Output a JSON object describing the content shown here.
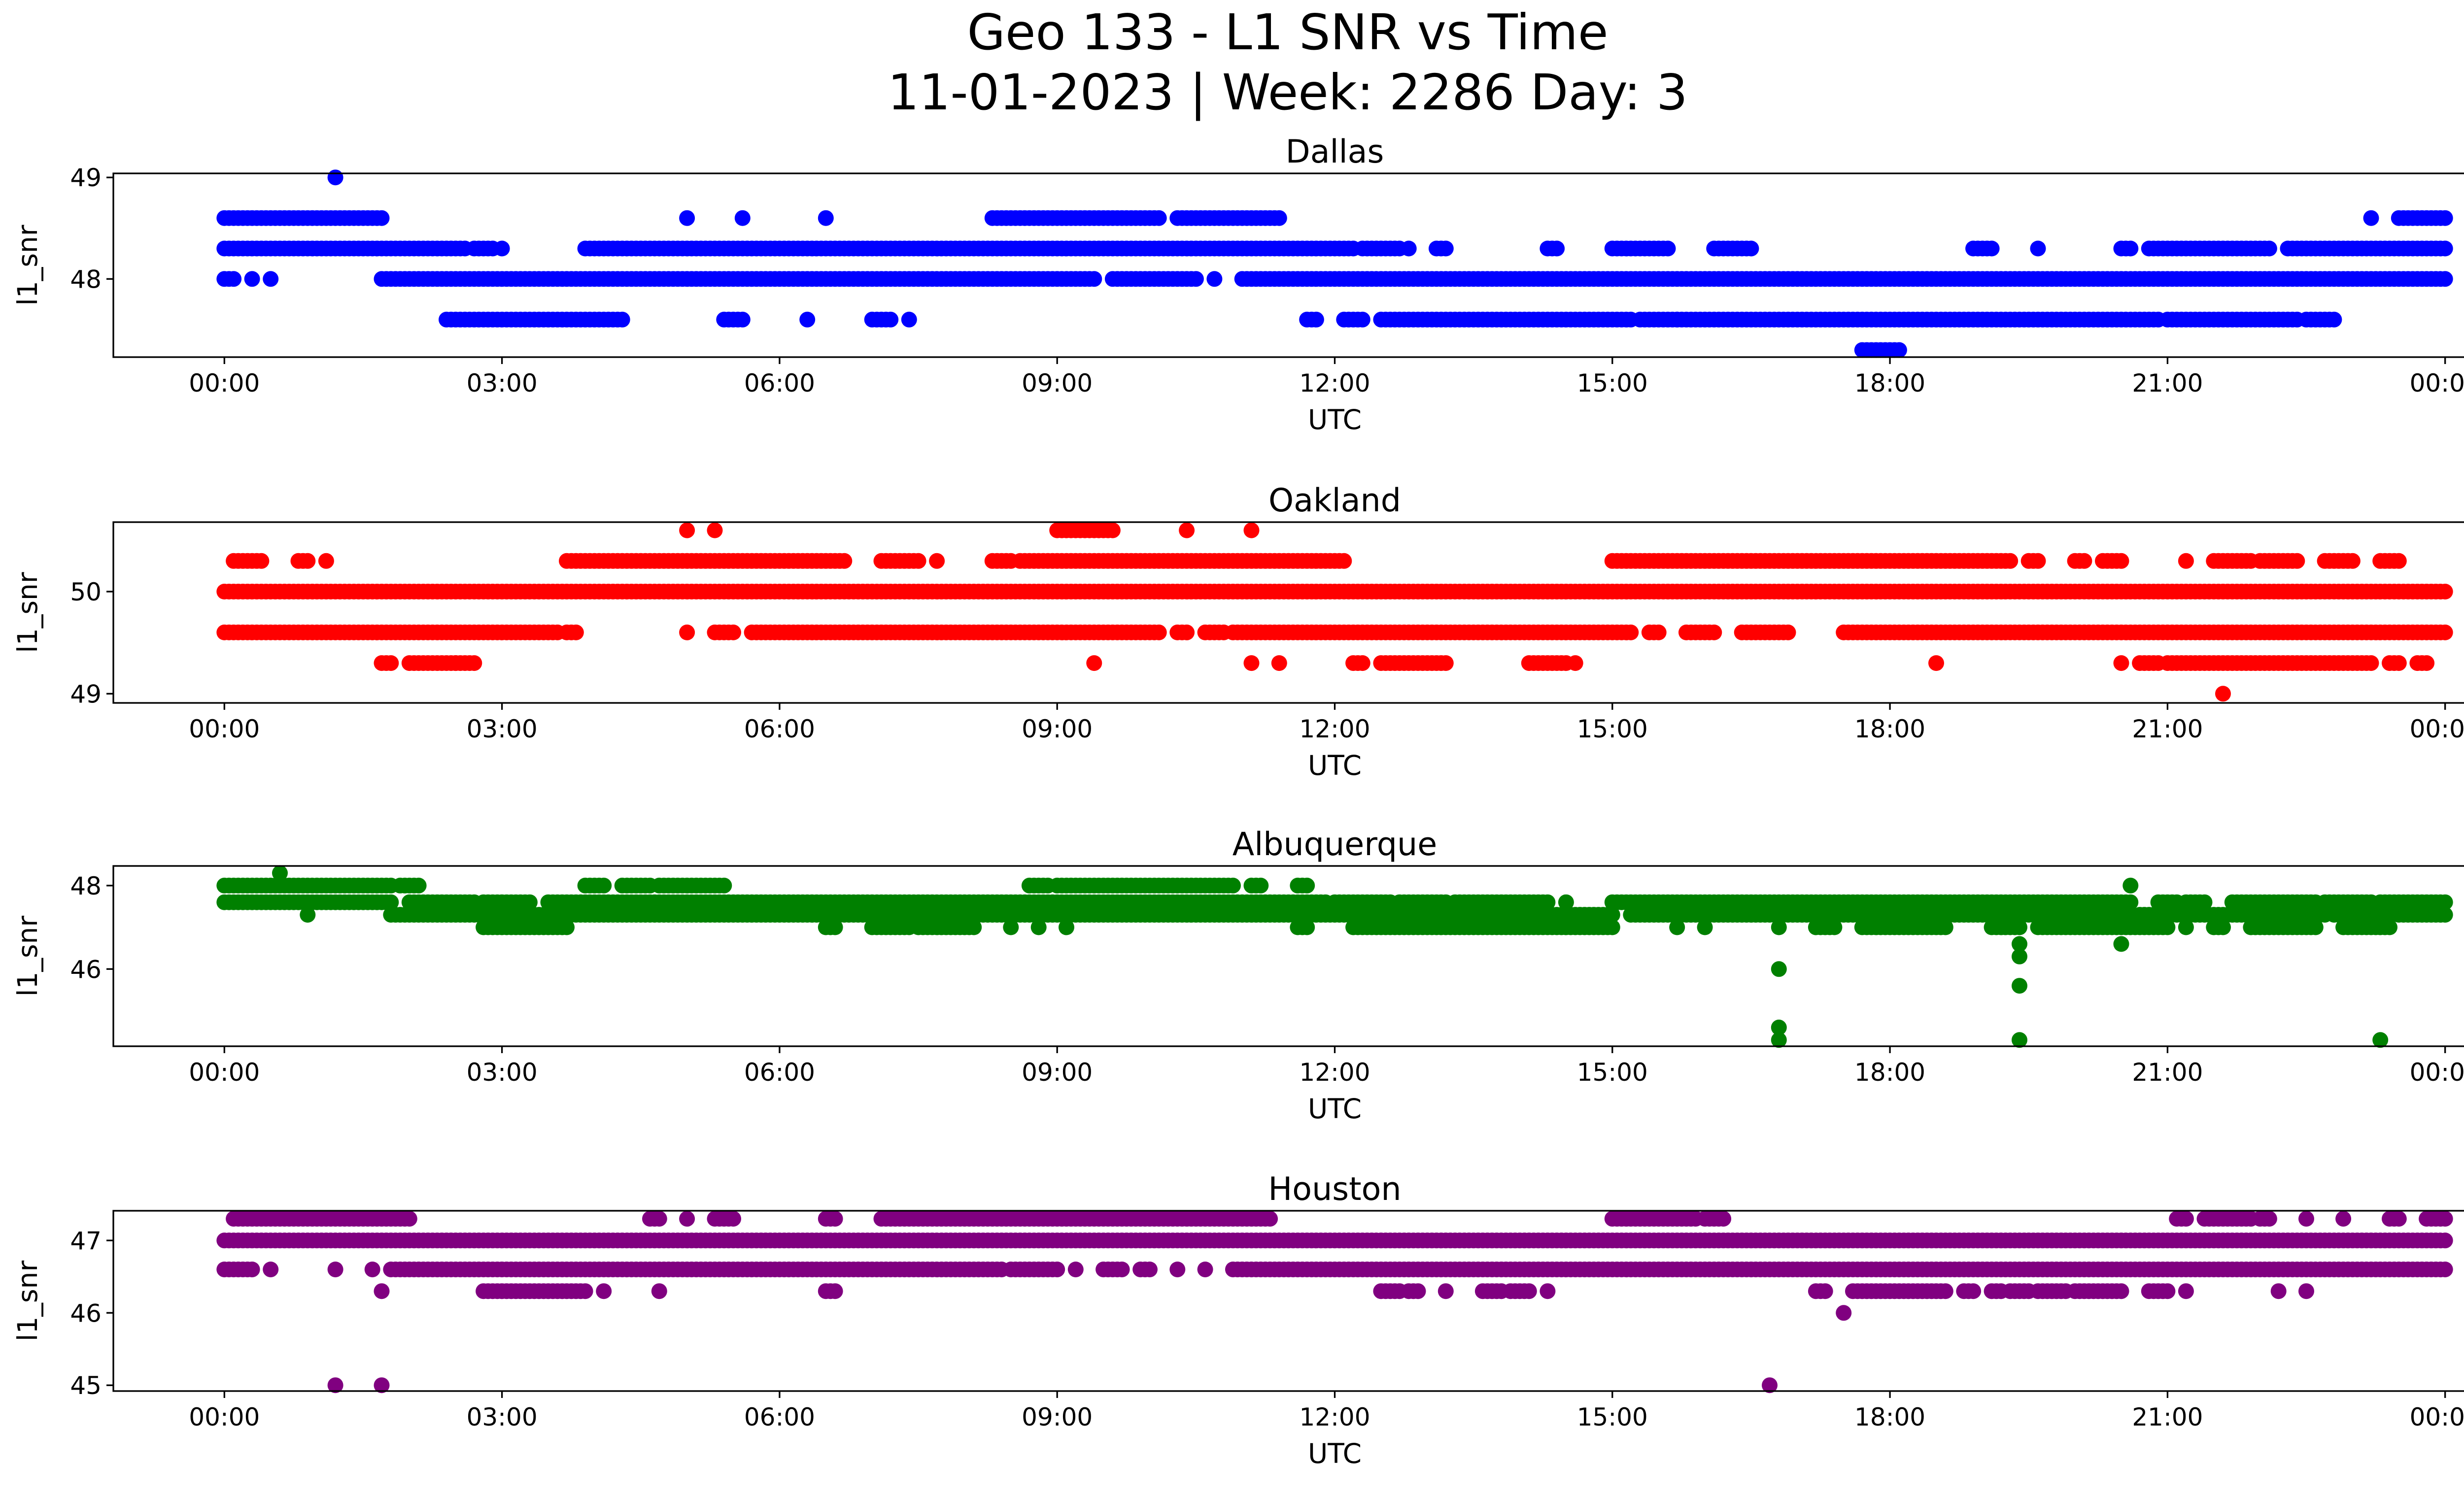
{
  "figure": {
    "title_line1": "Geo 133 - L1 SNR vs Time",
    "title_line2": "11-01-2023 | Week: 2286 Day: 3"
  },
  "chart_data": [
    {
      "type": "scatter",
      "title": "Dallas",
      "xlabel": "UTC",
      "ylabel": "l1_snr",
      "color": "#0000ff",
      "xlim_hours": [
        -1.2,
        25.2
      ],
      "ylim": [
        47.23,
        49.04
      ],
      "x_tick_hours": [
        0,
        3,
        6,
        9,
        12,
        15,
        18,
        21,
        24
      ],
      "x_tick_labels": [
        "00:00",
        "03:00",
        "06:00",
        "09:00",
        "12:00",
        "15:00",
        "18:00",
        "21:00",
        "00:00"
      ],
      "yticks": [
        48,
        49
      ],
      "y_tick_labels": [
        "48",
        "49"
      ],
      "bands": [
        {
          "y": 48.3,
          "segments": [
            [
              0,
              2.6
            ],
            [
              2.7,
              2.9
            ],
            [
              3.0,
              3.0
            ],
            [
              3.9,
              12.2
            ],
            [
              12.3,
              12.7
            ],
            [
              12.8,
              12.8
            ],
            [
              13.1,
              13.2
            ],
            [
              14.3,
              14.4
            ],
            [
              15.0,
              15.6
            ],
            [
              16.1,
              16.5
            ],
            [
              18.9,
              19.1
            ],
            [
              19.6,
              19.6
            ],
            [
              20.5,
              20.6
            ],
            [
              20.8,
              22.1
            ],
            [
              22.3,
              24.0
            ]
          ]
        },
        {
          "y": 48.0,
          "segments": [
            [
              0,
              0.1
            ],
            [
              0.3,
              0.3
            ],
            [
              0.5,
              0.5
            ],
            [
              1.7,
              9.4
            ],
            [
              9.6,
              10.5
            ],
            [
              10.7,
              10.7
            ],
            [
              11.0,
              24.0
            ]
          ]
        },
        {
          "y": 48.6,
          "segments": [
            [
              0,
              1.7
            ],
            [
              5.0,
              5.0
            ],
            [
              5.6,
              5.6
            ],
            [
              6.5,
              6.5
            ],
            [
              8.3,
              10.1
            ],
            [
              10.3,
              11.4
            ],
            [
              23.2,
              23.2
            ],
            [
              23.5,
              24.0
            ]
          ]
        },
        {
          "y": 47.6,
          "segments": [
            [
              2.4,
              4.3
            ],
            [
              5.4,
              5.6
            ],
            [
              6.3,
              6.3
            ],
            [
              7.0,
              7.2
            ],
            [
              7.4,
              7.4
            ],
            [
              11.7,
              11.8
            ],
            [
              12.1,
              12.3
            ],
            [
              12.5,
              15.2
            ],
            [
              15.3,
              15.7
            ],
            [
              15.7,
              20.9
            ],
            [
              21.0,
              22.4
            ],
            [
              22.5,
              22.8
            ]
          ]
        },
        {
          "y": 47.3,
          "segments": [
            [
              17.7,
              18.1
            ]
          ]
        }
      ],
      "points": [
        [
          1.2,
          49.0
        ]
      ]
    },
    {
      "type": "scatter",
      "title": "Oakland",
      "xlabel": "UTC",
      "ylabel": "l1_snr",
      "color": "#ff0000",
      "xlim_hours": [
        -1.2,
        25.2
      ],
      "ylim": [
        48.91,
        50.68
      ],
      "x_tick_hours": [
        0,
        3,
        6,
        9,
        12,
        15,
        18,
        21,
        24
      ],
      "x_tick_labels": [
        "00:00",
        "03:00",
        "06:00",
        "09:00",
        "12:00",
        "15:00",
        "18:00",
        "21:00",
        "00:00"
      ],
      "yticks": [
        49,
        50
      ],
      "y_tick_labels": [
        "49",
        "50"
      ],
      "bands": [
        {
          "y": 50.0,
          "segments": [
            [
              0,
              24.0
            ]
          ]
        },
        {
          "y": 49.6,
          "segments": [
            [
              0,
              3.6
            ],
            [
              3.7,
              3.8
            ],
            [
              5.0,
              5.0
            ],
            [
              5.3,
              5.5
            ],
            [
              5.7,
              10.1
            ],
            [
              10.3,
              10.4
            ],
            [
              10.6,
              10.8
            ],
            [
              10.9,
              15.2
            ],
            [
              15.4,
              15.5
            ],
            [
              15.8,
              16.1
            ],
            [
              16.4,
              16.9
            ],
            [
              17.5,
              24.0
            ]
          ]
        },
        {
          "y": 50.3,
          "segments": [
            [
              0.1,
              0.4
            ],
            [
              0.8,
              0.9
            ],
            [
              1.1,
              1.1
            ],
            [
              3.7,
              6.7
            ],
            [
              7.1,
              7.5
            ],
            [
              7.7,
              7.7
            ],
            [
              8.3,
              8.5
            ],
            [
              8.6,
              12.1
            ],
            [
              15.0,
              19.3
            ],
            [
              19.5,
              19.6
            ],
            [
              20.0,
              20.1
            ],
            [
              20.3,
              20.5
            ],
            [
              21.2,
              21.2
            ],
            [
              21.5,
              21.9
            ],
            [
              22.0,
              22.4
            ],
            [
              22.7,
              23.0
            ],
            [
              23.3,
              23.5
            ]
          ]
        },
        {
          "y": 50.6,
          "segments": [
            [
              5.0,
              5.0
            ],
            [
              5.3,
              5.3
            ],
            [
              9.0,
              9.6
            ],
            [
              10.4,
              10.4
            ],
            [
              11.1,
              11.1
            ]
          ]
        },
        {
          "y": 49.3,
          "segments": [
            [
              1.7,
              1.8
            ],
            [
              2.0,
              2.5
            ],
            [
              2.5,
              2.7
            ],
            [
              9.4,
              9.4
            ],
            [
              11.1,
              11.1
            ],
            [
              11.4,
              11.4
            ],
            [
              12.2,
              12.3
            ],
            [
              12.5,
              13.2
            ],
            [
              14.1,
              14.5
            ],
            [
              14.6,
              14.6
            ],
            [
              18.5,
              18.5
            ],
            [
              20.5,
              20.5
            ],
            [
              20.7,
              20.9
            ],
            [
              21.0,
              23.2
            ],
            [
              23.4,
              23.5
            ],
            [
              23.7,
              23.8
            ]
          ]
        }
      ],
      "points": [
        [
          21.6,
          49.0
        ]
      ]
    },
    {
      "type": "scatter",
      "title": "Albuquerque",
      "xlabel": "UTC",
      "ylabel": "l1_snr",
      "color": "#008000",
      "xlim_hours": [
        -1.2,
        25.2
      ],
      "ylim": [
        44.15,
        48.47
      ],
      "x_tick_hours": [
        0,
        3,
        6,
        9,
        12,
        15,
        18,
        21,
        24
      ],
      "x_tick_labels": [
        "00:00",
        "03:00",
        "06:00",
        "09:00",
        "12:00",
        "15:00",
        "18:00",
        "21:00",
        "00:00"
      ],
      "yticks": [
        46,
        48
      ],
      "y_tick_labels": [
        "46",
        "48"
      ],
      "bands": [
        {
          "y": 47.6,
          "segments": [
            [
              0,
              1.8
            ],
            [
              2.0,
              2.7
            ],
            [
              2.8,
              3.3
            ],
            [
              3.5,
              11.9
            ],
            [
              12.0,
              12.6
            ],
            [
              12.7,
              13.2
            ],
            [
              13.3,
              14.3
            ],
            [
              14.5,
              14.5
            ],
            [
              15.0,
              20.6
            ],
            [
              20.9,
              21.1
            ],
            [
              21.2,
              21.4
            ],
            [
              21.7,
              22.6
            ],
            [
              22.7,
              23.2
            ],
            [
              23.3,
              24.0
            ]
          ]
        },
        {
          "y": 47.3,
          "segments": [
            [
              1.8,
              15.0
            ],
            [
              15.2,
              20.6
            ],
            [
              20.7,
              22.7
            ],
            [
              22.8,
              23.4
            ],
            [
              23.5,
              24.0
            ]
          ]
        },
        {
          "y": 47.0,
          "segments": [
            [
              2.8,
              3.7
            ],
            [
              6.5,
              6.6
            ],
            [
              7.0,
              7.4
            ],
            [
              7.5,
              8.1
            ],
            [
              8.5,
              8.5
            ],
            [
              8.8,
              8.8
            ],
            [
              9.1,
              9.1
            ],
            [
              11.6,
              11.7
            ],
            [
              12.2,
              15.0
            ],
            [
              15.7,
              15.7
            ],
            [
              16.0,
              16.0
            ],
            [
              16.8,
              16.8
            ],
            [
              17.2,
              17.4
            ],
            [
              17.7,
              18.6
            ],
            [
              19.1,
              19.4
            ],
            [
              19.6,
              21.0
            ],
            [
              21.2,
              21.2
            ],
            [
              21.5,
              21.6
            ],
            [
              21.9,
              22.6
            ],
            [
              22.9,
              23.4
            ]
          ]
        },
        {
          "y": 48.0,
          "segments": [
            [
              0,
              1.8
            ],
            [
              1.9,
              2.1
            ],
            [
              3.9,
              4.1
            ],
            [
              4.3,
              4.6
            ],
            [
              4.7,
              5.4
            ],
            [
              8.7,
              8.9
            ],
            [
              9.0,
              10.9
            ],
            [
              11.1,
              11.2
            ],
            [
              11.6,
              11.7
            ]
          ]
        }
      ],
      "points": [
        [
          0.6,
          48.3
        ],
        [
          0.9,
          47.3
        ],
        [
          16.8,
          46.0
        ],
        [
          16.8,
          44.6
        ],
        [
          16.8,
          44.3
        ],
        [
          19.4,
          46.6
        ],
        [
          19.4,
          46.3
        ],
        [
          19.4,
          45.6
        ],
        [
          19.4,
          44.3
        ],
        [
          20.5,
          46.6
        ],
        [
          20.6,
          48.0
        ],
        [
          23.3,
          44.3
        ]
      ]
    },
    {
      "type": "scatter",
      "title": "Houston",
      "xlabel": "UTC",
      "ylabel": "l1_snr",
      "color": "#800080",
      "xlim_hours": [
        -1.2,
        25.2
      ],
      "ylim": [
        44.92,
        47.41
      ],
      "x_tick_hours": [
        0,
        3,
        6,
        9,
        12,
        15,
        18,
        21,
        24
      ],
      "x_tick_labels": [
        "00:00",
        "03:00",
        "06:00",
        "09:00",
        "12:00",
        "15:00",
        "18:00",
        "21:00",
        "00:00"
      ],
      "yticks": [
        45,
        46,
        47
      ],
      "y_tick_labels": [
        "45",
        "46",
        "47"
      ],
      "bands": [
        {
          "y": 47.0,
          "segments": [
            [
              0,
              24.0
            ]
          ]
        },
        {
          "y": 46.6,
          "segments": [
            [
              0,
              0.3
            ],
            [
              0.5,
              0.5
            ],
            [
              1.2,
              1.2
            ],
            [
              1.6,
              1.6
            ],
            [
              1.8,
              8.4
            ],
            [
              8.5,
              9.0
            ],
            [
              9.2,
              9.2
            ],
            [
              9.5,
              9.7
            ],
            [
              9.9,
              10.0
            ],
            [
              10.3,
              10.3
            ],
            [
              10.6,
              10.6
            ],
            [
              10.9,
              24.0
            ]
          ]
        },
        {
          "y": 47.3,
          "segments": [
            [
              0.1,
              2.0
            ],
            [
              4.6,
              4.7
            ],
            [
              5.0,
              5.0
            ],
            [
              5.3,
              5.5
            ],
            [
              6.5,
              6.6
            ],
            [
              7.1,
              11.3
            ],
            [
              15.0,
              15.9
            ],
            [
              16.0,
              16.2
            ],
            [
              21.1,
              21.2
            ],
            [
              21.4,
              21.9
            ],
            [
              22.0,
              22.1
            ],
            [
              22.5,
              22.5
            ],
            [
              22.9,
              22.9
            ],
            [
              23.4,
              23.5
            ],
            [
              23.8,
              24.0
            ]
          ]
        },
        {
          "y": 46.3,
          "segments": [
            [
              2.8,
              3.9
            ],
            [
              4.1,
              4.1
            ],
            [
              4.7,
              4.7
            ],
            [
              6.5,
              6.6
            ],
            [
              12.5,
              12.7
            ],
            [
              12.8,
              12.9
            ],
            [
              13.2,
              13.2
            ],
            [
              13.6,
              13.8
            ],
            [
              13.9,
              14.1
            ],
            [
              14.3,
              14.3
            ],
            [
              17.2,
              17.3
            ],
            [
              17.6,
              18.6
            ],
            [
              18.8,
              18.9
            ],
            [
              19.1,
              19.2
            ],
            [
              19.3,
              19.5
            ],
            [
              19.6,
              19.9
            ],
            [
              20.0,
              20.5
            ],
            [
              20.8,
              21.0
            ],
            [
              21.2,
              21.2
            ],
            [
              22.2,
              22.2
            ],
            [
              22.5,
              22.5
            ]
          ]
        }
      ],
      "points": [
        [
          1.2,
          45.0
        ],
        [
          1.7,
          46.3
        ],
        [
          1.7,
          45.0
        ],
        [
          16.7,
          45.0
        ],
        [
          17.5,
          46.0
        ]
      ]
    }
  ]
}
